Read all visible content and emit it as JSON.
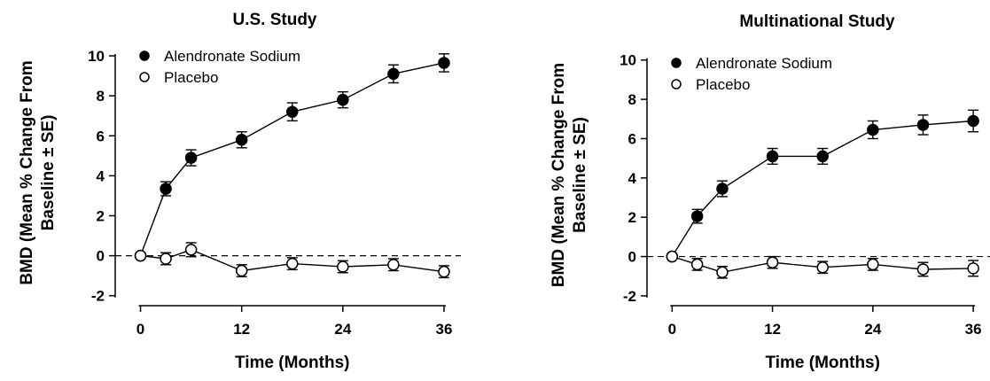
{
  "chart_data": [
    {
      "type": "line",
      "title": "U.S. Study",
      "xlabel": "Time (Months)",
      "ylabel_lines": [
        "BMD (Mean % Change From",
        "Baseline ± SE)"
      ],
      "x_ticks": [
        "0",
        "12",
        "24",
        "36"
      ],
      "y_ticks": [
        "10",
        "8",
        "6",
        "4",
        "2",
        "0",
        "-2"
      ],
      "xlim": [
        -3,
        38
      ],
      "ylim": [
        -2.5,
        10.8
      ],
      "reference_line": 0,
      "legend_placement": "top-left",
      "series": [
        {
          "name": "Alendronate Sodium",
          "marker": "filled",
          "x": [
            0,
            3,
            6,
            12,
            18,
            24,
            30,
            36
          ],
          "y": [
            0,
            3.35,
            4.9,
            5.8,
            7.2,
            7.8,
            9.1,
            9.65
          ],
          "err": [
            0,
            0.35,
            0.4,
            0.4,
            0.45,
            0.4,
            0.45,
            0.45
          ]
        },
        {
          "name": "Placebo",
          "marker": "open",
          "x": [
            0,
            3,
            6,
            12,
            18,
            24,
            30,
            36
          ],
          "y": [
            0,
            -0.15,
            0.3,
            -0.75,
            -0.4,
            -0.55,
            -0.45,
            -0.8
          ],
          "err": [
            0,
            0.3,
            0.35,
            0.3,
            0.3,
            0.3,
            0.3,
            0.3
          ]
        }
      ]
    },
    {
      "type": "line",
      "title": "Multinational Study",
      "xlabel": "Time (Months)",
      "ylabel_lines": [
        "BMD (Mean % Change From",
        "Baseline ± SE)"
      ],
      "x_ticks": [
        "0",
        "12",
        "24",
        "36"
      ],
      "y_ticks": [
        "10",
        "8",
        "6",
        "4",
        "2",
        "0",
        "-2"
      ],
      "xlim": [
        -3,
        38
      ],
      "ylim": [
        -2.5,
        10.8
      ],
      "reference_line": 0,
      "legend_placement": "top-left",
      "series": [
        {
          "name": "Alendronate Sodium",
          "marker": "filled",
          "x": [
            0,
            3,
            6,
            12,
            18,
            24,
            30,
            36
          ],
          "y": [
            0,
            2.05,
            3.45,
            5.1,
            5.1,
            6.45,
            6.7,
            6.9
          ],
          "err": [
            0,
            0.35,
            0.4,
            0.4,
            0.4,
            0.45,
            0.5,
            0.55
          ]
        },
        {
          "name": "Placebo",
          "marker": "open",
          "x": [
            0,
            3,
            6,
            12,
            18,
            24,
            30,
            36
          ],
          "y": [
            0,
            -0.4,
            -0.8,
            -0.3,
            -0.55,
            -0.4,
            -0.65,
            -0.6
          ],
          "err": [
            0,
            0.3,
            0.3,
            0.3,
            0.3,
            0.3,
            0.35,
            0.4
          ]
        }
      ]
    }
  ]
}
